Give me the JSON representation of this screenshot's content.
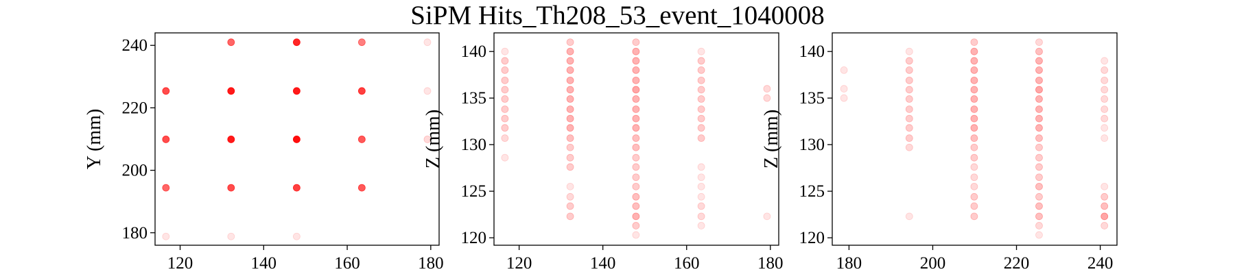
{
  "chart_data": {
    "title": "SiPM Hits_Th208_53_event_1040008",
    "color": "#ff0000",
    "panels": [
      {
        "type": "scatter",
        "xlabel": "",
        "ylabel": "Y (mm)",
        "xlim": [
          114,
          182
        ],
        "ylim": [
          176,
          244
        ],
        "xticks": [
          120,
          140,
          160,
          180
        ],
        "yticks": [
          180,
          200,
          220,
          240
        ],
        "points": [
          {
            "x": 132.2,
            "y": 241.0,
            "a": 0.6
          },
          {
            "x": 147.9,
            "y": 241.0,
            "a": 0.85
          },
          {
            "x": 163.5,
            "y": 241.0,
            "a": 0.5
          },
          {
            "x": 179.2,
            "y": 241.0,
            "a": 0.1
          },
          {
            "x": 116.6,
            "y": 225.4,
            "a": 0.7
          },
          {
            "x": 132.2,
            "y": 225.4,
            "a": 0.9
          },
          {
            "x": 147.9,
            "y": 225.4,
            "a": 0.9
          },
          {
            "x": 163.5,
            "y": 225.4,
            "a": 0.75
          },
          {
            "x": 179.2,
            "y": 225.4,
            "a": 0.1
          },
          {
            "x": 116.6,
            "y": 209.9,
            "a": 0.7
          },
          {
            "x": 132.2,
            "y": 209.9,
            "a": 0.9
          },
          {
            "x": 147.9,
            "y": 209.9,
            "a": 0.95
          },
          {
            "x": 163.5,
            "y": 209.9,
            "a": 0.65
          },
          {
            "x": 179.2,
            "y": 209.9,
            "a": 0.15
          },
          {
            "x": 116.6,
            "y": 194.4,
            "a": 0.6
          },
          {
            "x": 132.2,
            "y": 194.4,
            "a": 0.7
          },
          {
            "x": 147.9,
            "y": 194.4,
            "a": 0.75
          },
          {
            "x": 163.5,
            "y": 194.4,
            "a": 0.65
          },
          {
            "x": 116.6,
            "y": 178.8,
            "a": 0.1
          },
          {
            "x": 132.2,
            "y": 178.8,
            "a": 0.1
          },
          {
            "x": 147.9,
            "y": 178.8,
            "a": 0.1
          }
        ]
      },
      {
        "type": "scatter",
        "xlabel": "",
        "ylabel": "Z (mm)",
        "xlim": [
          114,
          182
        ],
        "ylim": [
          119.2,
          142
        ],
        "xticks": [
          120,
          140,
          160,
          180
        ],
        "yticks": [
          120,
          125,
          130,
          135,
          140
        ],
        "columns": [
          {
            "x": 116.6,
            "y": [
              140.0,
              139.0,
              138.0,
              136.9,
              135.9,
              134.9,
              133.8,
              132.8,
              131.8,
              130.7,
              128.6
            ],
            "a": [
              0.1,
              0.2,
              0.2,
              0.2,
              0.2,
              0.2,
              0.2,
              0.2,
              0.2,
              0.15,
              0.1
            ]
          },
          {
            "x": 132.2,
            "y": [
              141.0,
              140.0,
              139.0,
              138.0,
              136.9,
              135.9,
              134.9,
              133.8,
              132.8,
              131.8,
              130.7,
              129.7,
              128.6,
              127.6,
              125.5,
              124.4,
              123.4,
              122.3
            ],
            "a": [
              0.2,
              0.3,
              0.3,
              0.3,
              0.3,
              0.3,
              0.3,
              0.3,
              0.3,
              0.3,
              0.25,
              0.2,
              0.2,
              0.2,
              0.1,
              0.15,
              0.2,
              0.2
            ]
          },
          {
            "x": 147.9,
            "y": [
              141.0,
              140.0,
              139.0,
              138.0,
              136.9,
              135.9,
              134.9,
              133.8,
              132.8,
              131.8,
              130.7,
              129.7,
              128.6,
              127.6,
              126.5,
              125.5,
              124.4,
              123.4,
              122.3,
              121.3,
              120.3
            ],
            "a": [
              0.2,
              0.3,
              0.3,
              0.3,
              0.3,
              0.35,
              0.3,
              0.3,
              0.3,
              0.3,
              0.25,
              0.25,
              0.2,
              0.2,
              0.2,
              0.2,
              0.25,
              0.25,
              0.3,
              0.2,
              0.1
            ]
          },
          {
            "x": 163.5,
            "y": [
              140.0,
              139.0,
              138.0,
              136.9,
              135.9,
              134.9,
              133.8,
              132.8,
              131.8,
              130.7,
              127.6,
              126.5,
              125.5,
              124.4,
              123.4,
              122.3,
              121.3
            ],
            "a": [
              0.1,
              0.2,
              0.2,
              0.2,
              0.2,
              0.2,
              0.2,
              0.2,
              0.2,
              0.2,
              0.1,
              0.1,
              0.1,
              0.1,
              0.15,
              0.15,
              0.1
            ]
          },
          {
            "x": 179.2,
            "y": [
              136.0,
              135.0,
              122.3
            ],
            "a": [
              0.15,
              0.15,
              0.1
            ]
          }
        ]
      },
      {
        "type": "scatter",
        "xlabel": "",
        "ylabel": "Z (mm)",
        "xlim": [
          176,
          244
        ],
        "ylim": [
          119.2,
          142
        ],
        "xticks": [
          180,
          200,
          220,
          240
        ],
        "yticks": [
          120,
          125,
          130,
          135,
          140
        ],
        "columns": [
          {
            "x": 178.8,
            "y": [
              138.0,
              136.0,
              135.0
            ],
            "a": [
              0.1,
              0.1,
              0.1
            ]
          },
          {
            "x": 194.4,
            "y": [
              140.0,
              139.0,
              138.0,
              136.9,
              135.9,
              134.9,
              133.8,
              132.8,
              131.8,
              130.7,
              129.7,
              122.3
            ],
            "a": [
              0.1,
              0.2,
              0.2,
              0.2,
              0.2,
              0.2,
              0.2,
              0.2,
              0.2,
              0.2,
              0.15,
              0.1
            ]
          },
          {
            "x": 209.9,
            "y": [
              141.0,
              140.0,
              139.0,
              138.0,
              136.9,
              135.9,
              134.9,
              133.8,
              132.8,
              131.8,
              130.7,
              129.7,
              128.6,
              127.6,
              126.5,
              125.5,
              124.4,
              123.4,
              122.3
            ],
            "a": [
              0.2,
              0.3,
              0.3,
              0.3,
              0.3,
              0.3,
              0.3,
              0.3,
              0.3,
              0.3,
              0.25,
              0.2,
              0.2,
              0.15,
              0.15,
              0.15,
              0.2,
              0.2,
              0.2
            ]
          },
          {
            "x": 225.4,
            "y": [
              141.0,
              140.0,
              139.0,
              138.0,
              136.9,
              135.9,
              134.9,
              133.8,
              132.8,
              131.8,
              130.7,
              129.7,
              128.6,
              127.6,
              126.5,
              125.5,
              124.4,
              123.4,
              122.3,
              121.3,
              120.3
            ],
            "a": [
              0.15,
              0.25,
              0.3,
              0.3,
              0.3,
              0.35,
              0.3,
              0.3,
              0.3,
              0.3,
              0.25,
              0.2,
              0.2,
              0.2,
              0.2,
              0.25,
              0.2,
              0.25,
              0.25,
              0.15,
              0.1
            ]
          },
          {
            "x": 241.0,
            "y": [
              139.0,
              138.0,
              136.9,
              135.9,
              134.9,
              133.8,
              132.8,
              131.8,
              130.7,
              125.5,
              124.4,
              123.4,
              122.3,
              121.3
            ],
            "a": [
              0.1,
              0.15,
              0.15,
              0.15,
              0.15,
              0.15,
              0.15,
              0.1,
              0.1,
              0.1,
              0.2,
              0.25,
              0.35,
              0.15
            ]
          }
        ]
      }
    ]
  }
}
